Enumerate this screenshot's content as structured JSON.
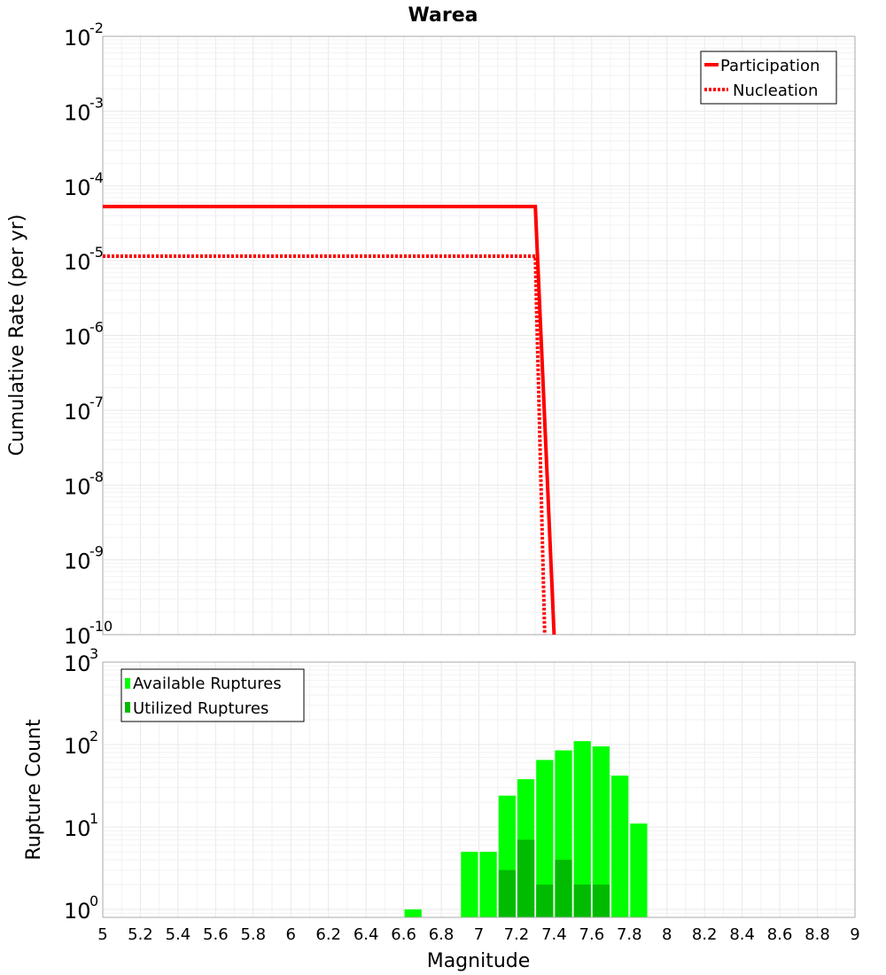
{
  "chart_data": [
    {
      "type": "line",
      "title": "Warea",
      "ylabel": "Cumulative Rate (per yr)",
      "y_scale": "log",
      "ylim": [
        1e-10,
        0.01
      ],
      "xlim": [
        5,
        9
      ],
      "y_tick_labels": [
        {
          "base": "10",
          "exp": "-2"
        },
        {
          "base": "10",
          "exp": "-3"
        },
        {
          "base": "10",
          "exp": "-4"
        },
        {
          "base": "10",
          "exp": "-5"
        },
        {
          "base": "10",
          "exp": "-6"
        },
        {
          "base": "10",
          "exp": "-7"
        },
        {
          "base": "10",
          "exp": "-8"
        },
        {
          "base": "10",
          "exp": "-9"
        },
        {
          "base": "10",
          "exp": "-10"
        }
      ],
      "legend": "top-right",
      "series": [
        {
          "name": "Participation",
          "color": "#ff0000",
          "style": "solid",
          "points": [
            [
              5.0,
              5.3e-05
            ],
            [
              7.3,
              5.3e-05
            ],
            [
              7.4,
              1e-10
            ]
          ]
        },
        {
          "name": "Nucleation",
          "color": "#ff0000",
          "style": "dotted",
          "points": [
            [
              5.0,
              1.15e-05
            ],
            [
              7.3,
              1.15e-05
            ],
            [
              7.35,
              1e-10
            ]
          ]
        }
      ]
    },
    {
      "type": "bar",
      "ylabel": "Rupture Count",
      "xlabel": "Magnitude",
      "y_scale": "log",
      "ylim": [
        0.8,
        1000
      ],
      "xlim": [
        5,
        9
      ],
      "bar_width": 0.1,
      "y_tick_labels": [
        {
          "base": "10",
          "exp": "3"
        },
        {
          "base": "10",
          "exp": "2"
        },
        {
          "base": "10",
          "exp": "1"
        },
        {
          "base": "10",
          "exp": "0"
        }
      ],
      "x_tick_labels": [
        "5",
        "5.2",
        "5.4",
        "5.6",
        "5.8",
        "6",
        "6.2",
        "6.4",
        "6.6",
        "6.8",
        "7",
        "7.2",
        "7.4",
        "7.6",
        "7.8",
        "8",
        "8.2",
        "8.4",
        "8.6",
        "8.8",
        "9"
      ],
      "legend": "top-left",
      "series": [
        {
          "name": "Available Ruptures",
          "color": "#00ff00",
          "x": [
            6.65,
            6.95,
            7.05,
            7.15,
            7.25,
            7.35,
            7.45,
            7.55,
            7.65,
            7.75,
            7.85
          ],
          "values": [
            1,
            5,
            5,
            24,
            38,
            65,
            85,
            110,
            95,
            42,
            11
          ]
        },
        {
          "name": "Utilized Ruptures",
          "color": "#00bb00",
          "x": [
            7.15,
            7.25,
            7.35,
            7.45,
            7.55,
            7.65
          ],
          "values": [
            3,
            7,
            2,
            4,
            2,
            2
          ]
        }
      ]
    }
  ]
}
